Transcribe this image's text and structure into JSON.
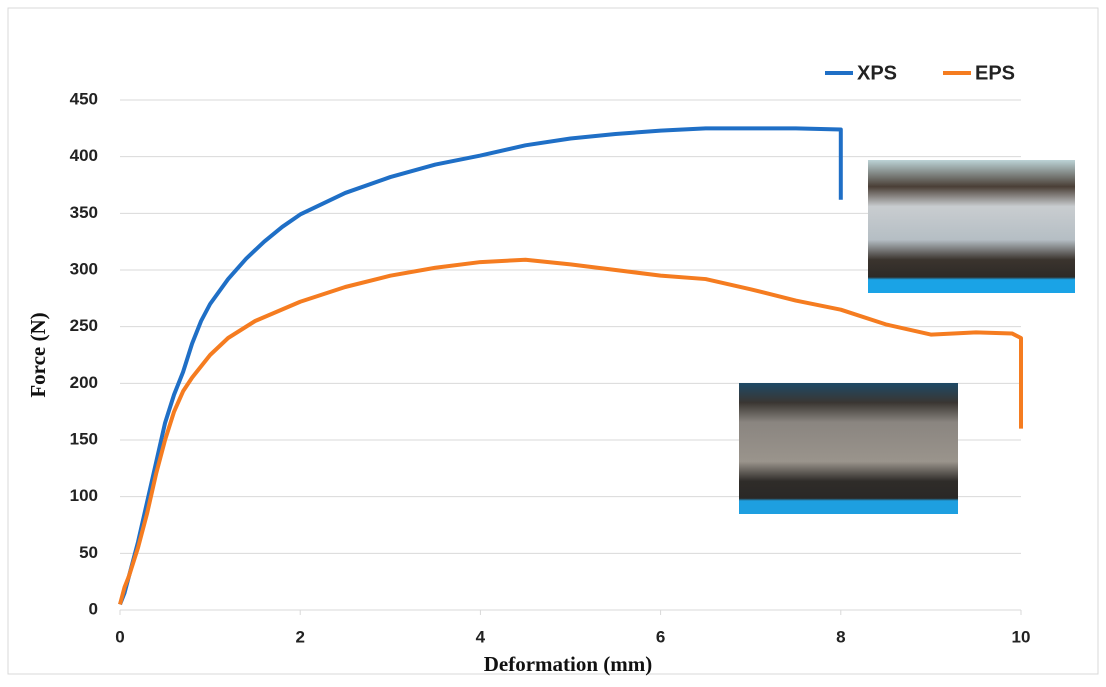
{
  "chart_data": {
    "type": "line",
    "x_label": "Deformation (mm)",
    "y_label": "Force (N)",
    "xlim": [
      0,
      10
    ],
    "xticks": [
      0,
      2,
      4,
      6,
      8,
      10
    ],
    "ylim": [
      0,
      450
    ],
    "yticks": [
      0,
      50,
      100,
      150,
      200,
      250,
      300,
      350,
      400,
      450
    ],
    "grid": true,
    "legend": "top-right",
    "series": [
      {
        "name": "XPS",
        "color": "#1f6fc6",
        "x": [
          0,
          0.05,
          0.1,
          0.2,
          0.3,
          0.4,
          0.5,
          0.6,
          0.7,
          0.8,
          0.9,
          1.0,
          1.2,
          1.4,
          1.6,
          1.8,
          2.0,
          2.5,
          3,
          3.5,
          4,
          4.5,
          5,
          5.5,
          6,
          6.5,
          7,
          7.5,
          8,
          8
        ],
        "values": [
          5,
          15,
          30,
          60,
          95,
          130,
          165,
          190,
          210,
          235,
          255,
          270,
          292,
          310,
          325,
          338,
          349,
          368,
          382,
          393,
          401,
          410,
          416,
          420,
          423,
          425,
          425,
          425,
          424,
          362
        ]
      },
      {
        "name": "EPS",
        "color": "#f57c20",
        "x": [
          0,
          0.05,
          0.1,
          0.2,
          0.3,
          0.4,
          0.5,
          0.6,
          0.7,
          0.8,
          1.0,
          1.2,
          1.5,
          2,
          2.5,
          3,
          3.5,
          4,
          4.5,
          5,
          5.5,
          6,
          6.5,
          7,
          7.5,
          8,
          8.5,
          9,
          9.5,
          9.9,
          10,
          10
        ],
        "values": [
          5,
          20,
          30,
          55,
          85,
          120,
          150,
          175,
          193,
          205,
          225,
          240,
          255,
          272,
          285,
          295,
          302,
          307,
          309,
          305,
          300,
          295,
          292,
          283,
          273,
          265,
          252,
          243,
          245,
          244,
          240,
          160
        ]
      }
    ]
  }
}
